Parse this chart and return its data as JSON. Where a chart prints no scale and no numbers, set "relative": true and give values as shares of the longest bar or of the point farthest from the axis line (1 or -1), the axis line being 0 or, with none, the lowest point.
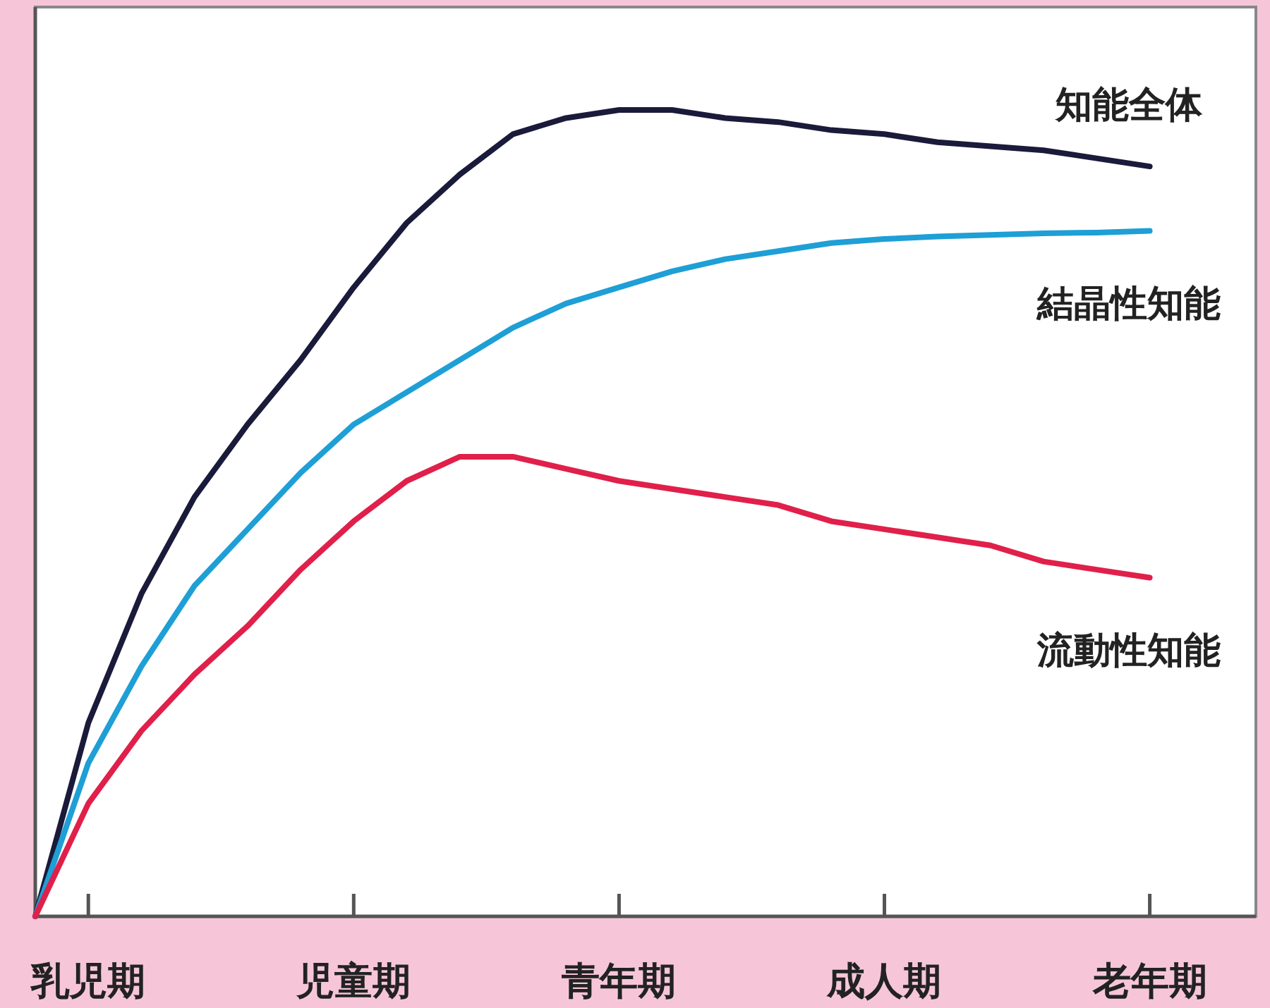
{
  "chart_data": {
    "type": "line",
    "relative": true,
    "categories": [
      null,
      "乳児期",
      null,
      null,
      null,
      null,
      "児童期",
      null,
      null,
      null,
      null,
      "青年期",
      null,
      null,
      null,
      null,
      "成人期",
      null,
      null,
      null,
      null,
      "老年期"
    ],
    "series": [
      {
        "name": "知能全体",
        "color": "#1a1a3a",
        "values": [
          0,
          0.24,
          0.4,
          0.52,
          0.61,
          0.69,
          0.78,
          0.86,
          0.92,
          0.97,
          0.99,
          1,
          1,
          0.99,
          0.985,
          0.975,
          0.97,
          0.96,
          0.955,
          0.95,
          0.94,
          0.93
        ]
      },
      {
        "name": "結晶性知能",
        "color": "#1e9fd6",
        "values": [
          0,
          0.19,
          0.31,
          0.41,
          0.48,
          0.55,
          0.61,
          0.65,
          0.69,
          0.73,
          0.76,
          0.78,
          0.8,
          0.815,
          0.825,
          0.835,
          0.84,
          0.843,
          0.845,
          0.847,
          0.848,
          0.85
        ]
      },
      {
        "name": "流動性知能",
        "color": "#e0204a",
        "values": [
          0,
          0.14,
          0.23,
          0.3,
          0.36,
          0.43,
          0.49,
          0.54,
          0.57,
          0.57,
          0.555,
          0.54,
          0.53,
          0.52,
          0.51,
          0.49,
          0.48,
          0.47,
          0.46,
          0.44,
          0.43,
          0.42
        ]
      }
    ]
  }
}
